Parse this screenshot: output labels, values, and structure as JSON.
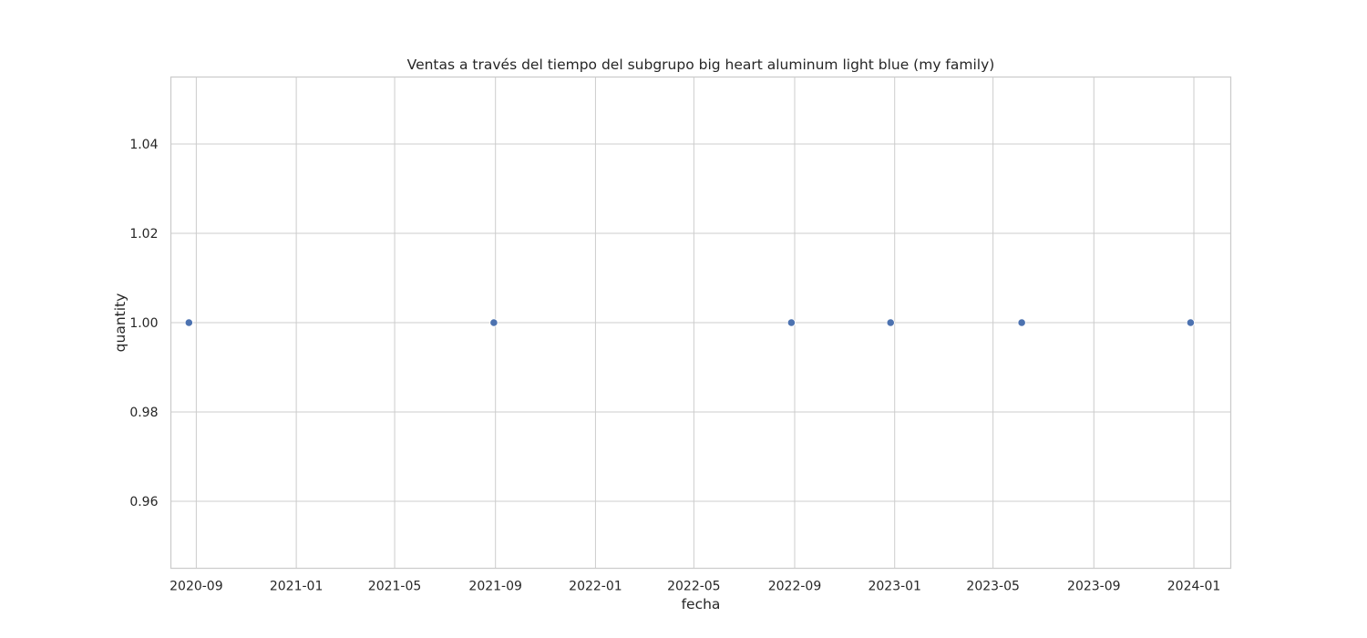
{
  "chart_data": {
    "type": "scatter",
    "title": "Ventas a través del tiempo del subgrupo big heart aluminum light blue (my family)",
    "xlabel": "fecha",
    "ylabel": "quantity",
    "x_type": "date",
    "xlim": [
      "2020-08-01",
      "2024-02-15"
    ],
    "ylim": [
      0.945,
      1.055
    ],
    "x_ticks": [
      "2020-09-01",
      "2021-01-01",
      "2021-05-01",
      "2021-09-01",
      "2022-01-01",
      "2022-05-01",
      "2022-09-01",
      "2023-01-01",
      "2023-05-01",
      "2023-09-01",
      "2024-01-01"
    ],
    "x_tick_labels": [
      "2020-09",
      "2021-01",
      "2021-05",
      "2021-09",
      "2022-01",
      "2022-05",
      "2022-09",
      "2023-01",
      "2023-05",
      "2023-09",
      "2024-01"
    ],
    "y_ticks": [
      0.96,
      0.98,
      1.0,
      1.02,
      1.04
    ],
    "y_tick_labels": [
      "0.96",
      "0.98",
      "1.00",
      "1.02",
      "1.04"
    ],
    "grid": true,
    "legend": "none",
    "series": [
      {
        "color": "#4c72b0",
        "x": [
          "2020-08-23",
          "2021-08-30",
          "2022-08-28",
          "2022-12-27",
          "2023-06-05",
          "2023-12-28"
        ],
        "y": [
          1,
          1,
          1,
          1,
          1,
          1
        ]
      }
    ]
  }
}
